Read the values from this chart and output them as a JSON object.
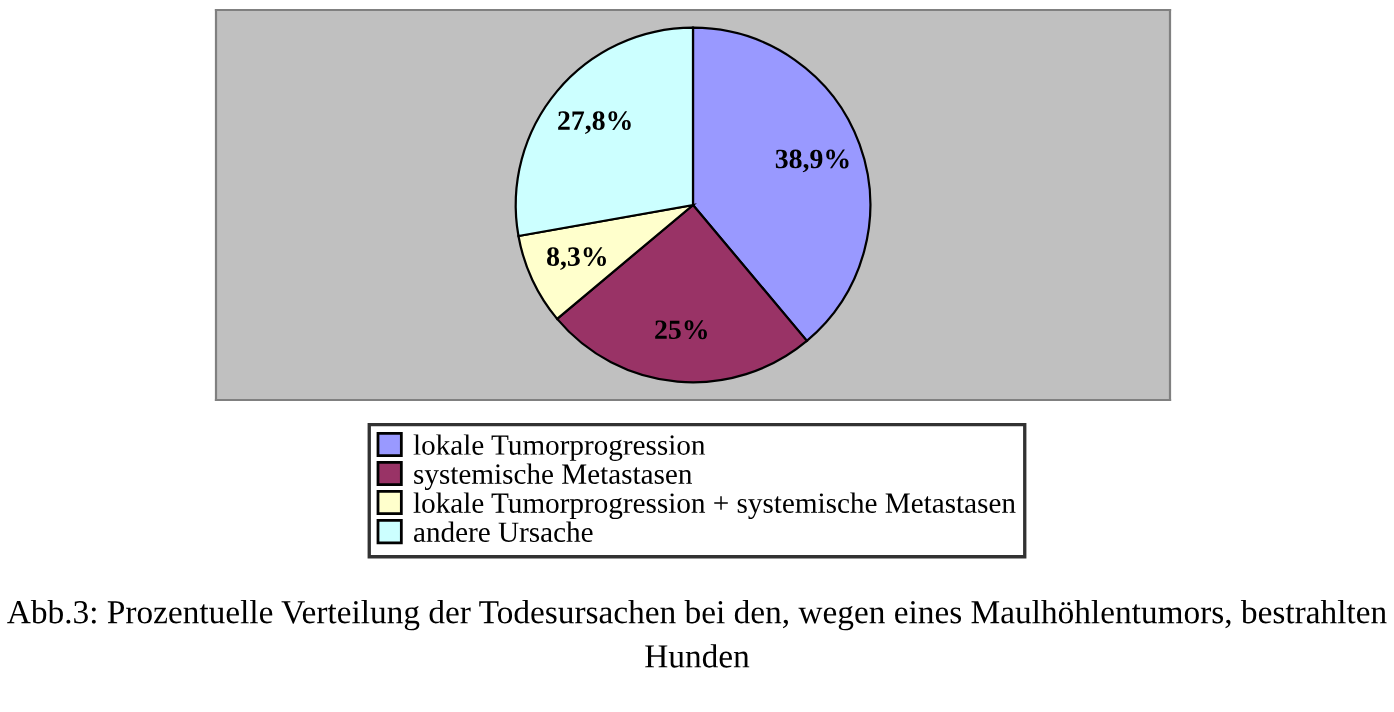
{
  "chart_data": {
    "type": "pie",
    "categories": [
      "lokale Tumorprogression",
      "systemische Metastasen",
      "lokale Tumorprogression + systemische Metastasen",
      "andere Ursache"
    ],
    "values": [
      38.9,
      25,
      8.3,
      27.8
    ],
    "value_labels": [
      "38,9%",
      "25%",
      "8,3%",
      "27,8%"
    ],
    "colors": [
      "#9999ff",
      "#993366",
      "#ffffcc",
      "#ccffff"
    ],
    "legend": "bottom",
    "annotations": [
      "Abb.3: Prozentuelle Verteilung der Todesursachen bei den, wegen eines Maulhöhlentumors, bestrahlten Hunden"
    ]
  }
}
